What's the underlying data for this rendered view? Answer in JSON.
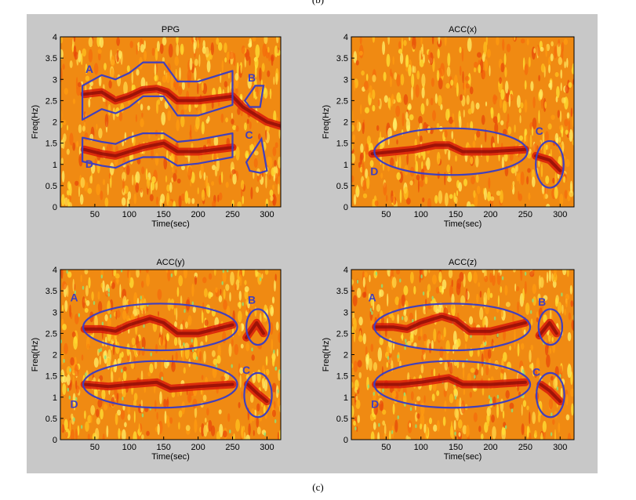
{
  "captions": {
    "top": "(b)",
    "bottom": "(c)"
  },
  "colors": {
    "background_figure": "#c8c8c8",
    "annotation": "#3f3fbf"
  },
  "chart_data": [
    {
      "type": "heatmap",
      "title": "PPG",
      "xlabel": "Time(sec)",
      "ylabel": "Freq(Hz)",
      "xlim": [
        0,
        320
      ],
      "ylim": [
        0,
        4
      ],
      "xticks": [
        "50",
        "100",
        "150",
        "200",
        "250",
        "300"
      ],
      "yticks": [
        "0",
        "0.5",
        "1",
        "1.5",
        "2",
        "2.5",
        "3",
        "3.5",
        "4"
      ],
      "ridges": [
        {
          "label": "A",
          "t": [
            35,
            60,
            80,
            100,
            120,
            140,
            155,
            170,
            200,
            250,
            265,
            300,
            320
          ],
          "f": [
            2.65,
            2.7,
            2.5,
            2.6,
            2.75,
            2.78,
            2.7,
            2.5,
            2.5,
            2.6,
            2.35,
            2.0,
            1.9
          ]
        },
        {
          "label": "D",
          "t": [
            35,
            60,
            80,
            100,
            120,
            150,
            170,
            200,
            250
          ],
          "f": [
            1.35,
            1.25,
            1.2,
            1.3,
            1.4,
            1.5,
            1.3,
            1.3,
            1.4
          ]
        }
      ],
      "annotations": [
        {
          "label": "A",
          "shape": "band",
          "t": [
            32,
            60,
            80,
            100,
            120,
            150,
            170,
            200,
            250
          ],
          "f_center": [
            2.45,
            2.7,
            2.6,
            2.75,
            3.0,
            3.0,
            2.55,
            2.55,
            2.8
          ],
          "half_width": 0.4
        },
        {
          "label": "D",
          "shape": "band",
          "t": [
            32,
            60,
            80,
            100,
            120,
            150,
            170,
            200,
            250
          ],
          "f_center": [
            1.35,
            1.25,
            1.2,
            1.35,
            1.45,
            1.45,
            1.25,
            1.3,
            1.45
          ],
          "half_width": 0.28
        },
        {
          "label": "B",
          "shape": "poly",
          "t": [
            268,
            283,
            295,
            290,
            275
          ],
          "f": [
            2.5,
            2.85,
            2.85,
            2.35,
            2.35
          ]
        },
        {
          "label": "C",
          "shape": "poly",
          "t": [
            270,
            292,
            300,
            290,
            275
          ],
          "f": [
            1.05,
            1.6,
            0.85,
            0.8,
            0.85
          ]
        }
      ],
      "letters": [
        {
          "text": "A",
          "t": 42,
          "f": 3.15
        },
        {
          "text": "B",
          "t": 278,
          "f": 2.95
        },
        {
          "text": "C",
          "t": 274,
          "f": 1.6
        },
        {
          "text": "D",
          "t": 42,
          "f": 0.92
        }
      ]
    },
    {
      "type": "heatmap",
      "title": "ACC(x)",
      "xlabel": "Time(sec)",
      "ylabel": "Freq(Hz)",
      "xlim": [
        0,
        320
      ],
      "ylim": [
        0,
        4
      ],
      "xticks": [
        "50",
        "100",
        "150",
        "200",
        "250",
        "300"
      ],
      "yticks": [
        "0",
        "0.5",
        "1",
        "1.5",
        "2",
        "2.5",
        "3",
        "3.5",
        "4"
      ],
      "ridges": [
        {
          "label": "D",
          "t": [
            30,
            60,
            90,
            120,
            140,
            160,
            200,
            250
          ],
          "f": [
            1.25,
            1.3,
            1.35,
            1.45,
            1.45,
            1.3,
            1.3,
            1.35
          ]
        },
        {
          "label": "C",
          "t": [
            265,
            285,
            300
          ],
          "f": [
            1.2,
            1.1,
            0.85
          ]
        }
      ],
      "annotations": [
        {
          "label": "D",
          "shape": "ellipse",
          "t": 143,
          "f": 1.3,
          "rt": 110,
          "rf": 0.55
        },
        {
          "label": "C",
          "shape": "ellipse",
          "t": 285,
          "f": 1.0,
          "rt": 20,
          "rf": 0.55
        }
      ],
      "letters": [
        {
          "text": "C",
          "t": 270,
          "f": 1.7
        },
        {
          "text": "D",
          "t": 33,
          "f": 0.75
        }
      ]
    },
    {
      "type": "heatmap",
      "title": "ACC(y)",
      "xlabel": "Time(sec)",
      "ylabel": "Freq(Hz)",
      "xlim": [
        0,
        320
      ],
      "ylim": [
        0,
        4
      ],
      "xticks": [
        "50",
        "100",
        "150",
        "200",
        "250",
        "300"
      ],
      "yticks": [
        "0",
        "0.5",
        "1",
        "1.5",
        "2",
        "2.5",
        "3",
        "3.5",
        "4"
      ],
      "ridges": [
        {
          "label": "A",
          "t": [
            35,
            60,
            80,
            100,
            130,
            150,
            170,
            200,
            250
          ],
          "f": [
            2.6,
            2.6,
            2.55,
            2.7,
            2.85,
            2.75,
            2.5,
            2.5,
            2.7
          ]
        },
        {
          "label": "D",
          "t": [
            35,
            70,
            100,
            140,
            160,
            200,
            250
          ],
          "f": [
            1.3,
            1.25,
            1.3,
            1.35,
            1.2,
            1.25,
            1.3
          ]
        },
        {
          "label": "B",
          "t": [
            270,
            285,
            295
          ],
          "f": [
            2.4,
            2.75,
            2.5
          ]
        },
        {
          "label": "C",
          "t": [
            272,
            285,
            300
          ],
          "f": [
            1.3,
            1.1,
            0.9
          ]
        }
      ],
      "annotations": [
        {
          "label": "A",
          "shape": "ellipse",
          "t": 145,
          "f": 2.65,
          "rt": 112,
          "rf": 0.55
        },
        {
          "label": "D",
          "shape": "ellipse",
          "t": 145,
          "f": 1.3,
          "rt": 112,
          "rf": 0.55
        },
        {
          "label": "B",
          "shape": "ellipse",
          "t": 287,
          "f": 2.65,
          "rt": 17,
          "rf": 0.42
        },
        {
          "label": "C",
          "shape": "ellipse",
          "t": 287,
          "f": 1.05,
          "rt": 20,
          "rf": 0.52
        }
      ],
      "letters": [
        {
          "text": "A",
          "t": 20,
          "f": 3.25
        },
        {
          "text": "B",
          "t": 278,
          "f": 3.2
        },
        {
          "text": "C",
          "t": 270,
          "f": 1.55
        },
        {
          "text": "D",
          "t": 20,
          "f": 0.75
        }
      ]
    },
    {
      "type": "heatmap",
      "title": "ACC(z)",
      "xlabel": "Time(sec)",
      "ylabel": "Freq(Hz)",
      "xlim": [
        0,
        320
      ],
      "ylim": [
        0,
        4
      ],
      "xticks": [
        "50",
        "100",
        "150",
        "200",
        "250",
        "300"
      ],
      "yticks": [
        "0",
        "0.5",
        "1",
        "1.5",
        "2",
        "2.5",
        "3",
        "3.5",
        "4"
      ],
      "ridges": [
        {
          "label": "A",
          "t": [
            35,
            60,
            80,
            100,
            130,
            150,
            170,
            200,
            250
          ],
          "f": [
            2.65,
            2.65,
            2.6,
            2.75,
            2.9,
            2.8,
            2.55,
            2.55,
            2.75
          ]
        },
        {
          "label": "D",
          "t": [
            35,
            70,
            100,
            140,
            160,
            200,
            250
          ],
          "f": [
            1.3,
            1.3,
            1.35,
            1.45,
            1.3,
            1.3,
            1.35
          ]
        },
        {
          "label": "B",
          "t": [
            270,
            285,
            295
          ],
          "f": [
            2.45,
            2.75,
            2.5
          ]
        },
        {
          "label": "C",
          "t": [
            272,
            285,
            300
          ],
          "f": [
            1.3,
            1.15,
            0.9
          ]
        }
      ],
      "annotations": [
        {
          "label": "A",
          "shape": "ellipse",
          "t": 145,
          "f": 2.65,
          "rt": 112,
          "rf": 0.55
        },
        {
          "label": "D",
          "shape": "ellipse",
          "t": 145,
          "f": 1.3,
          "rt": 112,
          "rf": 0.55
        },
        {
          "label": "B",
          "shape": "ellipse",
          "t": 286,
          "f": 2.65,
          "rt": 17,
          "rf": 0.42
        },
        {
          "label": "C",
          "shape": "ellipse",
          "t": 286,
          "f": 1.05,
          "rt": 20,
          "rf": 0.52
        }
      ],
      "letters": [
        {
          "text": "A",
          "t": 30,
          "f": 3.25
        },
        {
          "text": "B",
          "t": 274,
          "f": 3.15
        },
        {
          "text": "C",
          "t": 266,
          "f": 1.5
        },
        {
          "text": "D",
          "t": 34,
          "f": 0.75
        }
      ]
    }
  ]
}
